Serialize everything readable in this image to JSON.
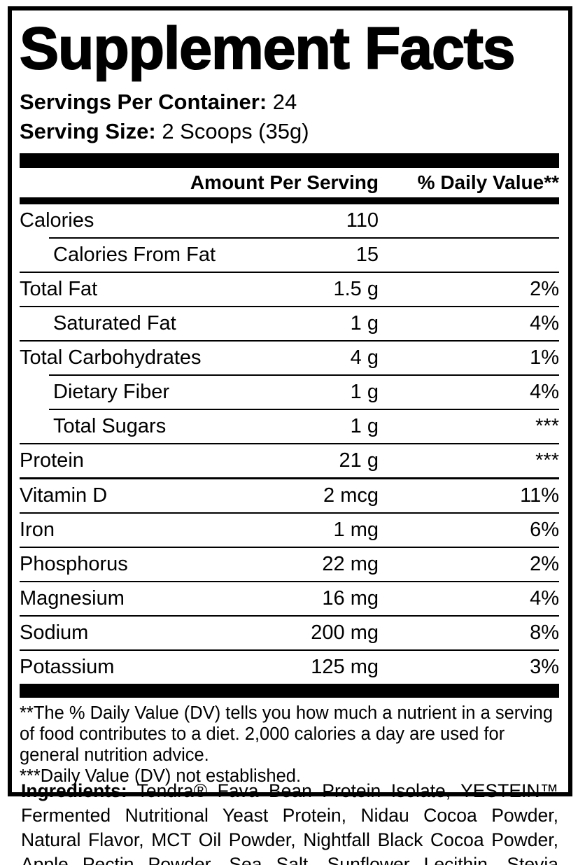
{
  "title": "Supplement Facts",
  "servings_per_container": {
    "label": "Servings Per Container:",
    "value": "24"
  },
  "serving_size": {
    "label": "Serving Size:",
    "value": "2 Scoops (35g)"
  },
  "table": {
    "header": {
      "amount": "Amount Per Serving",
      "daily_value": "% Daily Value**"
    },
    "rows": [
      {
        "label": "Calories",
        "amount": "110",
        "dv": ""
      },
      {
        "label": "Calories From Fat",
        "amount": "15",
        "dv": ""
      },
      {
        "label": "Total Fat",
        "amount": "1.5 g",
        "dv": "2%"
      },
      {
        "label": "Saturated Fat",
        "amount": "1 g",
        "dv": "4%"
      },
      {
        "label": "Total Carbohydrates",
        "amount": "4 g",
        "dv": "1%"
      },
      {
        "label": "Dietary Fiber",
        "amount": "1 g",
        "dv": "4%"
      },
      {
        "label": "Total Sugars",
        "amount": "1 g",
        "dv": "***"
      },
      {
        "label": "Protein",
        "amount": "21 g",
        "dv": "***"
      },
      {
        "label": "Vitamin D",
        "amount": "2 mcg",
        "dv": "11%"
      },
      {
        "label": "Iron",
        "amount": "1 mg",
        "dv": "6%"
      },
      {
        "label": "Phosphorus",
        "amount": "22 mg",
        "dv": "2%"
      },
      {
        "label": "Magnesium",
        "amount": "16 mg",
        "dv": "4%"
      },
      {
        "label": "Sodium",
        "amount": "200 mg",
        "dv": "8%"
      },
      {
        "label": "Potassium",
        "amount": "125 mg",
        "dv": "3%"
      }
    ]
  },
  "footnotes": {
    "daily_value_note": "**The % Daily Value (DV) tells you how much a nutrient in a serving of food contributes to a diet. 2,000 calories a day are used for general nutrition advice.",
    "not_established_note": "***Daily Value (DV) not established."
  },
  "ingredients": {
    "label": "Ingredients:",
    "text": " Tendra® Fava Bean Protein Isolate, YESTEIN™ Fermented Nutritional Yeast Protein, Nidau Cocoa Powder, Natural Flavor, MCT Oil Powder, Nightfall Black Cocoa Powder, Apple Pectin Powder, Sea Salt, Sunflower Lecithin, Stevia Extract (leaf)."
  },
  "colors": {
    "text": "#000000",
    "background": "#ffffff"
  }
}
